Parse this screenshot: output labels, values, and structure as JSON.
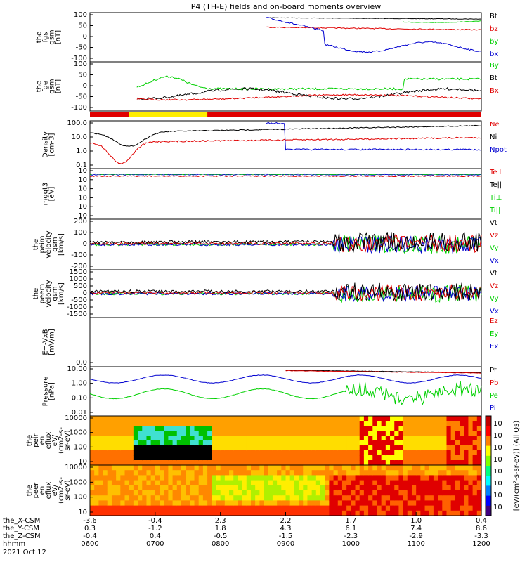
{
  "title": "P4 (TH-E) fields and on-board moments overview",
  "colors": {
    "black": "#000000",
    "red": "#e00000",
    "green": "#00d000",
    "blue": "#0000d0"
  },
  "chart_data": [
    {
      "type": "line",
      "name": "the_fgs_gsm",
      "ylabel": [
        "the",
        "fgs",
        "gsm",
        "[nT]"
      ],
      "yticks": [
        "100",
        "50",
        "0",
        "-50",
        "-100"
      ],
      "ylim": [
        -100,
        100
      ],
      "legend": [
        {
          "label": "Bt",
          "color": "black"
        },
        {
          "label": "bz",
          "color": "red"
        },
        {
          "label": "by",
          "color": "green"
        },
        {
          "label": "bx",
          "color": "blue"
        }
      ]
    },
    {
      "type": "line",
      "name": "the_fge_gsm",
      "ylabel": [
        "the",
        "fge",
        "gsm",
        "[nT]"
      ],
      "yticks": [
        "100",
        "50",
        "0",
        "-50",
        "-100"
      ],
      "ylim": [
        -120,
        120
      ],
      "legend": [
        {
          "label": "By",
          "color": "green"
        },
        {
          "label": "Bt",
          "color": "black"
        },
        {
          "label": "Bx",
          "color": "red"
        }
      ]
    },
    {
      "type": "line",
      "name": "density",
      "ylabel": [
        "Density",
        "[cm-3]"
      ],
      "scale": "log",
      "yticks": [
        "100.0",
        "10.0",
        "1.0",
        "0.1"
      ],
      "legend": [
        {
          "label": "Ne",
          "color": "red"
        },
        {
          "label": "Ni",
          "color": "black"
        },
        {
          "label": "Npot",
          "color": "blue"
        }
      ]
    },
    {
      "type": "line",
      "name": "temperature",
      "ylabel": [
        "mgqt3",
        "[eV]"
      ],
      "scale": "log",
      "yticks": [
        "10",
        "10",
        "10",
        "10",
        "10",
        "10"
      ],
      "legend": [
        {
          "label": "Te⊥",
          "color": "red"
        },
        {
          "label": "Te||",
          "color": "black"
        },
        {
          "label": "Ti⊥",
          "color": "green"
        },
        {
          "label": "Ti||",
          "color": "green"
        }
      ]
    },
    {
      "type": "line",
      "name": "the_peim_velocity_gsm",
      "ylabel": [
        "the",
        "peim",
        "velocity",
        "gsm",
        "[km/s]"
      ],
      "yticks": [
        "200",
        "100",
        "0",
        "-100",
        "-200"
      ],
      "ylim": [
        -200,
        200
      ],
      "legend": [
        {
          "label": "Vt",
          "color": "black"
        },
        {
          "label": "Vz",
          "color": "red"
        },
        {
          "label": "Vy",
          "color": "green"
        },
        {
          "label": "Vx",
          "color": "blue"
        }
      ]
    },
    {
      "type": "line",
      "name": "the_peem_velocity_gsm",
      "ylabel": [
        "the",
        "peem",
        "velocity",
        "gsm",
        "[km/s]"
      ],
      "yticks": [
        "1500",
        "1000",
        "500",
        "0",
        "-500",
        "-1000",
        "-1500"
      ],
      "ylim": [
        -1500,
        1500
      ],
      "legend": [
        {
          "label": "Vt",
          "color": "black"
        },
        {
          "label": "Vz",
          "color": "red"
        },
        {
          "label": "Vy",
          "color": "green"
        },
        {
          "label": "Vx",
          "color": "blue"
        }
      ]
    },
    {
      "type": "line",
      "name": "efield",
      "ylabel": [
        "E=-VxB",
        "[mV/m]"
      ],
      "yticks": [
        "0.0"
      ],
      "legend": [
        {
          "label": "Ez",
          "color": "red"
        },
        {
          "label": "Ey",
          "color": "green"
        },
        {
          "label": "Ex",
          "color": "blue"
        }
      ]
    },
    {
      "type": "line",
      "name": "pressure",
      "ylabel": [
        "Pressure",
        "[nPa]"
      ],
      "scale": "log",
      "yticks": [
        "10.00",
        "1.00",
        "0.10",
        "0.01"
      ],
      "legend": [
        {
          "label": "Pt",
          "color": "black"
        },
        {
          "label": "Pb",
          "color": "red"
        },
        {
          "label": "Pe",
          "color": "green"
        },
        {
          "label": "Pi",
          "color": "blue"
        }
      ]
    },
    {
      "type": "heatmap",
      "name": "the_peir_en_eflux",
      "ylabel": [
        "the",
        "peir",
        "en",
        "eflux",
        "eV/",
        "(cm2-s-",
        "sr-eV)"
      ],
      "yticks": [
        "10000",
        "1000",
        "100",
        "10"
      ]
    },
    {
      "type": "heatmap",
      "name": "the_peer_en_eflux",
      "ylabel": [
        "the",
        "peer",
        "en",
        "eflux",
        "eV/",
        "(cm2-s-",
        "sr-eV)"
      ],
      "yticks": [
        "10000",
        "1000",
        "100",
        "10"
      ]
    }
  ],
  "colorbar": {
    "label": "[eV/(cm²-s-sr-eV)] (All Qs)",
    "ticks_top": [
      "10",
      "10",
      "10",
      "10"
    ],
    "ticks_bottom": [
      "10",
      "10",
      "10",
      "10"
    ]
  },
  "xaxis": {
    "rows": [
      {
        "label": "the_X-CSM",
        "values": [
          "-3.6",
          "-0.4",
          "2.3",
          "2.2",
          "1.7",
          "1.0",
          "0.4"
        ]
      },
      {
        "label": "the_Y-CSM",
        "values": [
          "0.3",
          "-1.2",
          "1.8",
          "4.3",
          "6.1",
          "7.4",
          "8.6"
        ]
      },
      {
        "label": "the_Z-CSM",
        "values": [
          "-0.4",
          "0.4",
          "-0.5",
          "-1.5",
          "-2.3",
          "-2.9",
          "-3.3"
        ]
      },
      {
        "label": "hhmm",
        "values": [
          "0600",
          "0700",
          "0800",
          "0900",
          "1000",
          "1100",
          "1200"
        ]
      }
    ],
    "date": "2021 Oct 12"
  }
}
